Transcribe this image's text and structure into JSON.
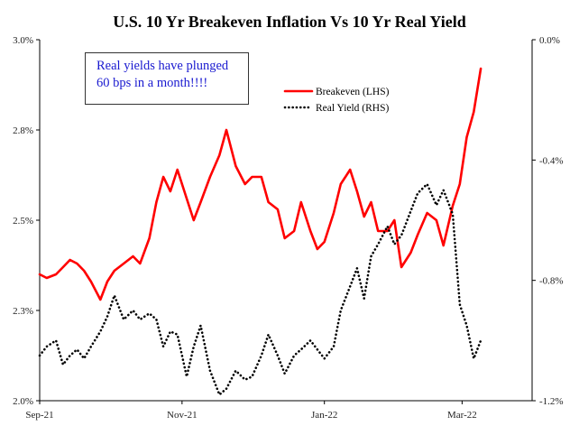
{
  "chart_data": {
    "type": "line",
    "title": "U.S. 10 Yr Breakeven Inflation Vs 10 Yr Real Yield",
    "annotation": [
      "Real yields have plunged",
      "60 bps in a month!!!!"
    ],
    "x_ticks": [
      "Sep-21",
      "Nov-21",
      "Jan-22",
      "Mar-22"
    ],
    "x_range": [
      "2021-09-01",
      "2022-03-31"
    ],
    "y_left": {
      "ticks": [
        "2.0%",
        "2.3%",
        "2.5%",
        "2.8%",
        "3.0%"
      ],
      "range": [
        2.0,
        3.0
      ]
    },
    "y_right": {
      "ticks": [
        "-1.2%",
        "-0.8%",
        "-0.4%",
        "0.0%"
      ],
      "range": [
        -1.2,
        0.0
      ]
    },
    "legend_position": "top-right",
    "series": [
      {
        "name": "Breakeven (LHS)",
        "axis": "left",
        "color": "#ff0000",
        "style": "solid",
        "points": [
          [
            "2021-09-01",
            2.35
          ],
          [
            "2021-09-04",
            2.34
          ],
          [
            "2021-09-08",
            2.35
          ],
          [
            "2021-09-11",
            2.37
          ],
          [
            "2021-09-14",
            2.39
          ],
          [
            "2021-09-17",
            2.38
          ],
          [
            "2021-09-20",
            2.36
          ],
          [
            "2021-09-23",
            2.33
          ],
          [
            "2021-09-27",
            2.28
          ],
          [
            "2021-09-30",
            2.33
          ],
          [
            "2021-10-03",
            2.36
          ],
          [
            "2021-10-07",
            2.38
          ],
          [
            "2021-10-11",
            2.4
          ],
          [
            "2021-10-14",
            2.38
          ],
          [
            "2021-10-18",
            2.45
          ],
          [
            "2021-10-21",
            2.55
          ],
          [
            "2021-10-24",
            2.62
          ],
          [
            "2021-10-27",
            2.58
          ],
          [
            "2021-10-30",
            2.64
          ],
          [
            "2021-11-03",
            2.56
          ],
          [
            "2021-11-06",
            2.5
          ],
          [
            "2021-11-09",
            2.55
          ],
          [
            "2021-11-13",
            2.62
          ],
          [
            "2021-11-17",
            2.68
          ],
          [
            "2021-11-20",
            2.75
          ],
          [
            "2021-11-24",
            2.65
          ],
          [
            "2021-11-28",
            2.6
          ],
          [
            "2021-12-01",
            2.62
          ],
          [
            "2021-12-05",
            2.62
          ],
          [
            "2021-12-08",
            2.55
          ],
          [
            "2021-12-12",
            2.53
          ],
          [
            "2021-12-15",
            2.45
          ],
          [
            "2021-12-19",
            2.47
          ],
          [
            "2021-12-22",
            2.55
          ],
          [
            "2021-12-26",
            2.47
          ],
          [
            "2021-12-29",
            2.42
          ],
          [
            "2022-01-01",
            2.44
          ],
          [
            "2022-01-05",
            2.52
          ],
          [
            "2022-01-08",
            2.6
          ],
          [
            "2022-01-12",
            2.64
          ],
          [
            "2022-01-15",
            2.58
          ],
          [
            "2022-01-18",
            2.51
          ],
          [
            "2022-01-21",
            2.55
          ],
          [
            "2022-01-24",
            2.47
          ],
          [
            "2022-01-28",
            2.47
          ],
          [
            "2022-01-31",
            2.5
          ],
          [
            "2022-02-03",
            2.37
          ],
          [
            "2022-02-07",
            2.41
          ],
          [
            "2022-02-10",
            2.46
          ],
          [
            "2022-02-14",
            2.52
          ],
          [
            "2022-02-18",
            2.5
          ],
          [
            "2022-02-21",
            2.43
          ],
          [
            "2022-02-25",
            2.54
          ],
          [
            "2022-02-28",
            2.6
          ],
          [
            "2022-03-03",
            2.73
          ],
          [
            "2022-03-06",
            2.8
          ],
          [
            "2022-03-09",
            2.92
          ]
        ]
      },
      {
        "name": "Real Yield (RHS)",
        "axis": "right",
        "color": "#000000",
        "style": "dotted",
        "points": [
          [
            "2021-09-01",
            -1.05
          ],
          [
            "2021-09-04",
            -1.02
          ],
          [
            "2021-09-08",
            -1.0
          ],
          [
            "2021-09-11",
            -1.08
          ],
          [
            "2021-09-14",
            -1.05
          ],
          [
            "2021-09-17",
            -1.03
          ],
          [
            "2021-09-20",
            -1.06
          ],
          [
            "2021-09-23",
            -1.02
          ],
          [
            "2021-09-27",
            -0.97
          ],
          [
            "2021-09-30",
            -0.92
          ],
          [
            "2021-10-03",
            -0.85
          ],
          [
            "2021-10-07",
            -0.93
          ],
          [
            "2021-10-11",
            -0.9
          ],
          [
            "2021-10-14",
            -0.93
          ],
          [
            "2021-10-18",
            -0.91
          ],
          [
            "2021-10-21",
            -0.93
          ],
          [
            "2021-10-24",
            -1.02
          ],
          [
            "2021-10-27",
            -0.97
          ],
          [
            "2021-10-30",
            -0.98
          ],
          [
            "2021-11-03",
            -1.12
          ],
          [
            "2021-11-06",
            -1.02
          ],
          [
            "2021-11-09",
            -0.95
          ],
          [
            "2021-11-13",
            -1.1
          ],
          [
            "2021-11-17",
            -1.18
          ],
          [
            "2021-11-20",
            -1.16
          ],
          [
            "2021-11-24",
            -1.1
          ],
          [
            "2021-11-28",
            -1.13
          ],
          [
            "2021-12-01",
            -1.12
          ],
          [
            "2021-12-05",
            -1.05
          ],
          [
            "2021-12-08",
            -0.98
          ],
          [
            "2021-12-12",
            -1.05
          ],
          [
            "2021-12-15",
            -1.11
          ],
          [
            "2021-12-19",
            -1.05
          ],
          [
            "2021-12-22",
            -1.03
          ],
          [
            "2021-12-26",
            -1.0
          ],
          [
            "2021-12-29",
            -1.03
          ],
          [
            "2022-01-01",
            -1.06
          ],
          [
            "2022-01-05",
            -1.02
          ],
          [
            "2022-01-08",
            -0.9
          ],
          [
            "2022-01-12",
            -0.82
          ],
          [
            "2022-01-15",
            -0.76
          ],
          [
            "2022-01-18",
            -0.86
          ],
          [
            "2022-01-21",
            -0.72
          ],
          [
            "2022-01-24",
            -0.68
          ],
          [
            "2022-01-28",
            -0.62
          ],
          [
            "2022-01-31",
            -0.68
          ],
          [
            "2022-02-03",
            -0.65
          ],
          [
            "2022-02-07",
            -0.57
          ],
          [
            "2022-02-10",
            -0.51
          ],
          [
            "2022-02-14",
            -0.48
          ],
          [
            "2022-02-18",
            -0.55
          ],
          [
            "2022-02-21",
            -0.5
          ],
          [
            "2022-02-25",
            -0.58
          ],
          [
            "2022-02-28",
            -0.88
          ],
          [
            "2022-03-03",
            -0.95
          ],
          [
            "2022-03-06",
            -1.06
          ],
          [
            "2022-03-09",
            -1.0
          ]
        ]
      }
    ]
  }
}
